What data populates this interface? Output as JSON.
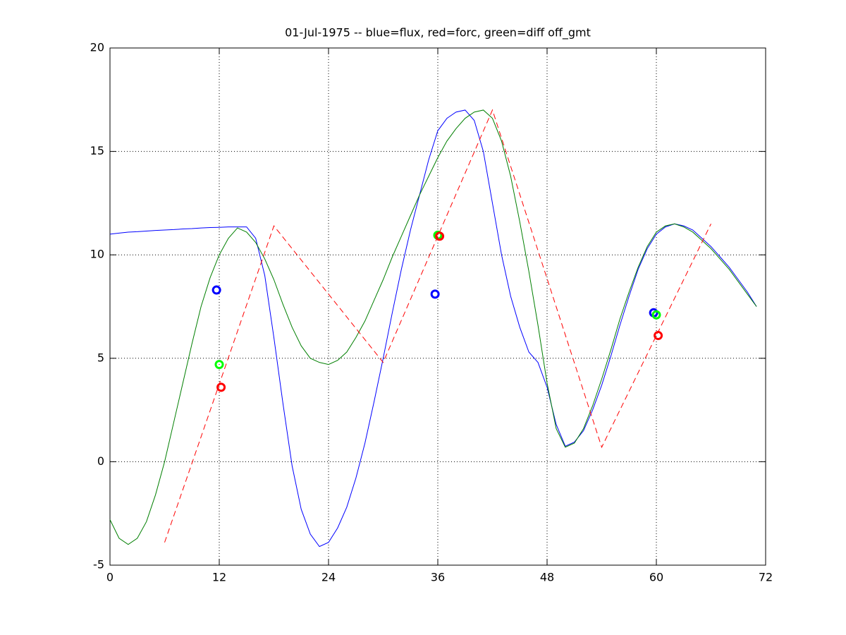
{
  "chart_data": {
    "type": "line",
    "title": "01-Jul-1975 -- blue=flux, red=forc, green=diff off_gmt",
    "xlim": [
      0,
      72
    ],
    "xticks": [
      0,
      12,
      24,
      36,
      48,
      60,
      72
    ],
    "ylim": [
      -5,
      20
    ],
    "yticks": [
      -5,
      0,
      5,
      10,
      15,
      20
    ],
    "grid": true,
    "series": [
      {
        "color": "#0000ff",
        "linestyle": "solid",
        "marker": "none",
        "x": [
          0,
          1,
          2,
          3,
          4,
          5,
          6,
          7,
          8,
          9,
          10,
          11,
          12,
          13,
          14,
          15,
          16,
          17,
          18,
          19,
          20,
          21,
          22,
          23,
          24,
          25,
          26,
          27,
          28,
          29,
          30,
          31,
          32,
          33,
          34,
          35,
          36,
          37,
          38,
          39,
          40,
          41,
          42,
          43,
          44,
          45,
          46,
          47,
          48,
          49,
          50,
          51,
          52,
          53,
          54,
          55,
          56,
          57,
          58,
          59,
          60,
          61,
          62,
          63,
          64,
          65,
          66,
          67,
          68,
          69,
          70,
          71
        ],
        "values": [
          11.0,
          11.05,
          11.1,
          11.12,
          11.15,
          11.18,
          11.2,
          11.22,
          11.25,
          11.27,
          11.3,
          11.32,
          11.33,
          11.35,
          11.35,
          11.35,
          10.8,
          9.0,
          6.0,
          2.8,
          -0.2,
          -2.3,
          -3.5,
          -4.1,
          -3.9,
          -3.2,
          -2.2,
          -0.8,
          0.9,
          2.9,
          5.0,
          7.2,
          9.3,
          11.2,
          12.9,
          14.6,
          16.0,
          16.6,
          16.9,
          17.0,
          16.5,
          15.0,
          12.5,
          10.0,
          8.0,
          6.5,
          5.3,
          4.8,
          3.6,
          1.8,
          0.75,
          0.95,
          1.5,
          2.5,
          3.7,
          5.1,
          6.6,
          8.0,
          9.3,
          10.3,
          11.0,
          11.35,
          11.5,
          11.4,
          11.2,
          10.8,
          10.4,
          9.9,
          9.4,
          8.8,
          8.2,
          7.5
        ]
      },
      {
        "color": "#007f00",
        "linestyle": "solid",
        "marker": "none",
        "x": [
          0,
          1,
          2,
          3,
          4,
          5,
          6,
          7,
          8,
          9,
          10,
          11,
          12,
          13,
          14,
          15,
          16,
          17,
          18,
          19,
          20,
          21,
          22,
          23,
          24,
          25,
          26,
          27,
          28,
          29,
          30,
          31,
          32,
          33,
          34,
          35,
          36,
          37,
          38,
          39,
          40,
          41,
          42,
          43,
          44,
          45,
          46,
          47,
          48,
          49,
          50,
          51,
          52,
          53,
          54,
          55,
          56,
          57,
          58,
          59,
          60,
          61,
          62,
          63,
          64,
          65,
          66,
          67,
          68,
          69,
          70,
          71
        ],
        "values": [
          -2.8,
          -3.7,
          -4.0,
          -3.7,
          -2.9,
          -1.6,
          0.0,
          1.9,
          3.8,
          5.7,
          7.5,
          8.9,
          10.0,
          10.8,
          11.3,
          11.1,
          10.6,
          9.8,
          8.8,
          7.6,
          6.5,
          5.6,
          5.0,
          4.8,
          4.7,
          4.9,
          5.3,
          6.0,
          6.8,
          7.8,
          8.8,
          9.9,
          10.9,
          11.9,
          12.9,
          13.8,
          14.7,
          15.5,
          16.1,
          16.6,
          16.9,
          17.0,
          16.6,
          15.5,
          13.8,
          11.6,
          9.2,
          6.6,
          3.8,
          1.6,
          0.7,
          0.9,
          1.6,
          2.7,
          4.0,
          5.4,
          6.9,
          8.2,
          9.4,
          10.4,
          11.1,
          11.4,
          11.5,
          11.35,
          11.1,
          10.7,
          10.3,
          9.8,
          9.3,
          8.7,
          8.1,
          7.5
        ]
      },
      {
        "color": "#ff0000",
        "linestyle": "dashed",
        "marker": "none",
        "x": [
          6,
          18,
          30,
          42,
          54,
          66
        ],
        "values": [
          -3.9,
          11.4,
          4.8,
          17.0,
          0.7,
          11.5
        ]
      },
      {
        "color": "#0000ff",
        "linestyle": "none",
        "marker": "circle",
        "x": [
          11.7,
          35.7,
          59.7
        ],
        "values": [
          8.3,
          8.1,
          7.2
        ]
      },
      {
        "color": "#00ff00",
        "linestyle": "none",
        "marker": "circle",
        "x": [
          12.0,
          36.0,
          60.0
        ],
        "values": [
          4.7,
          10.95,
          7.1
        ]
      },
      {
        "color": "#ff0000",
        "linestyle": "none",
        "marker": "circle",
        "x": [
          12.2,
          36.2,
          60.2
        ],
        "values": [
          3.6,
          10.9,
          6.1
        ]
      }
    ]
  }
}
